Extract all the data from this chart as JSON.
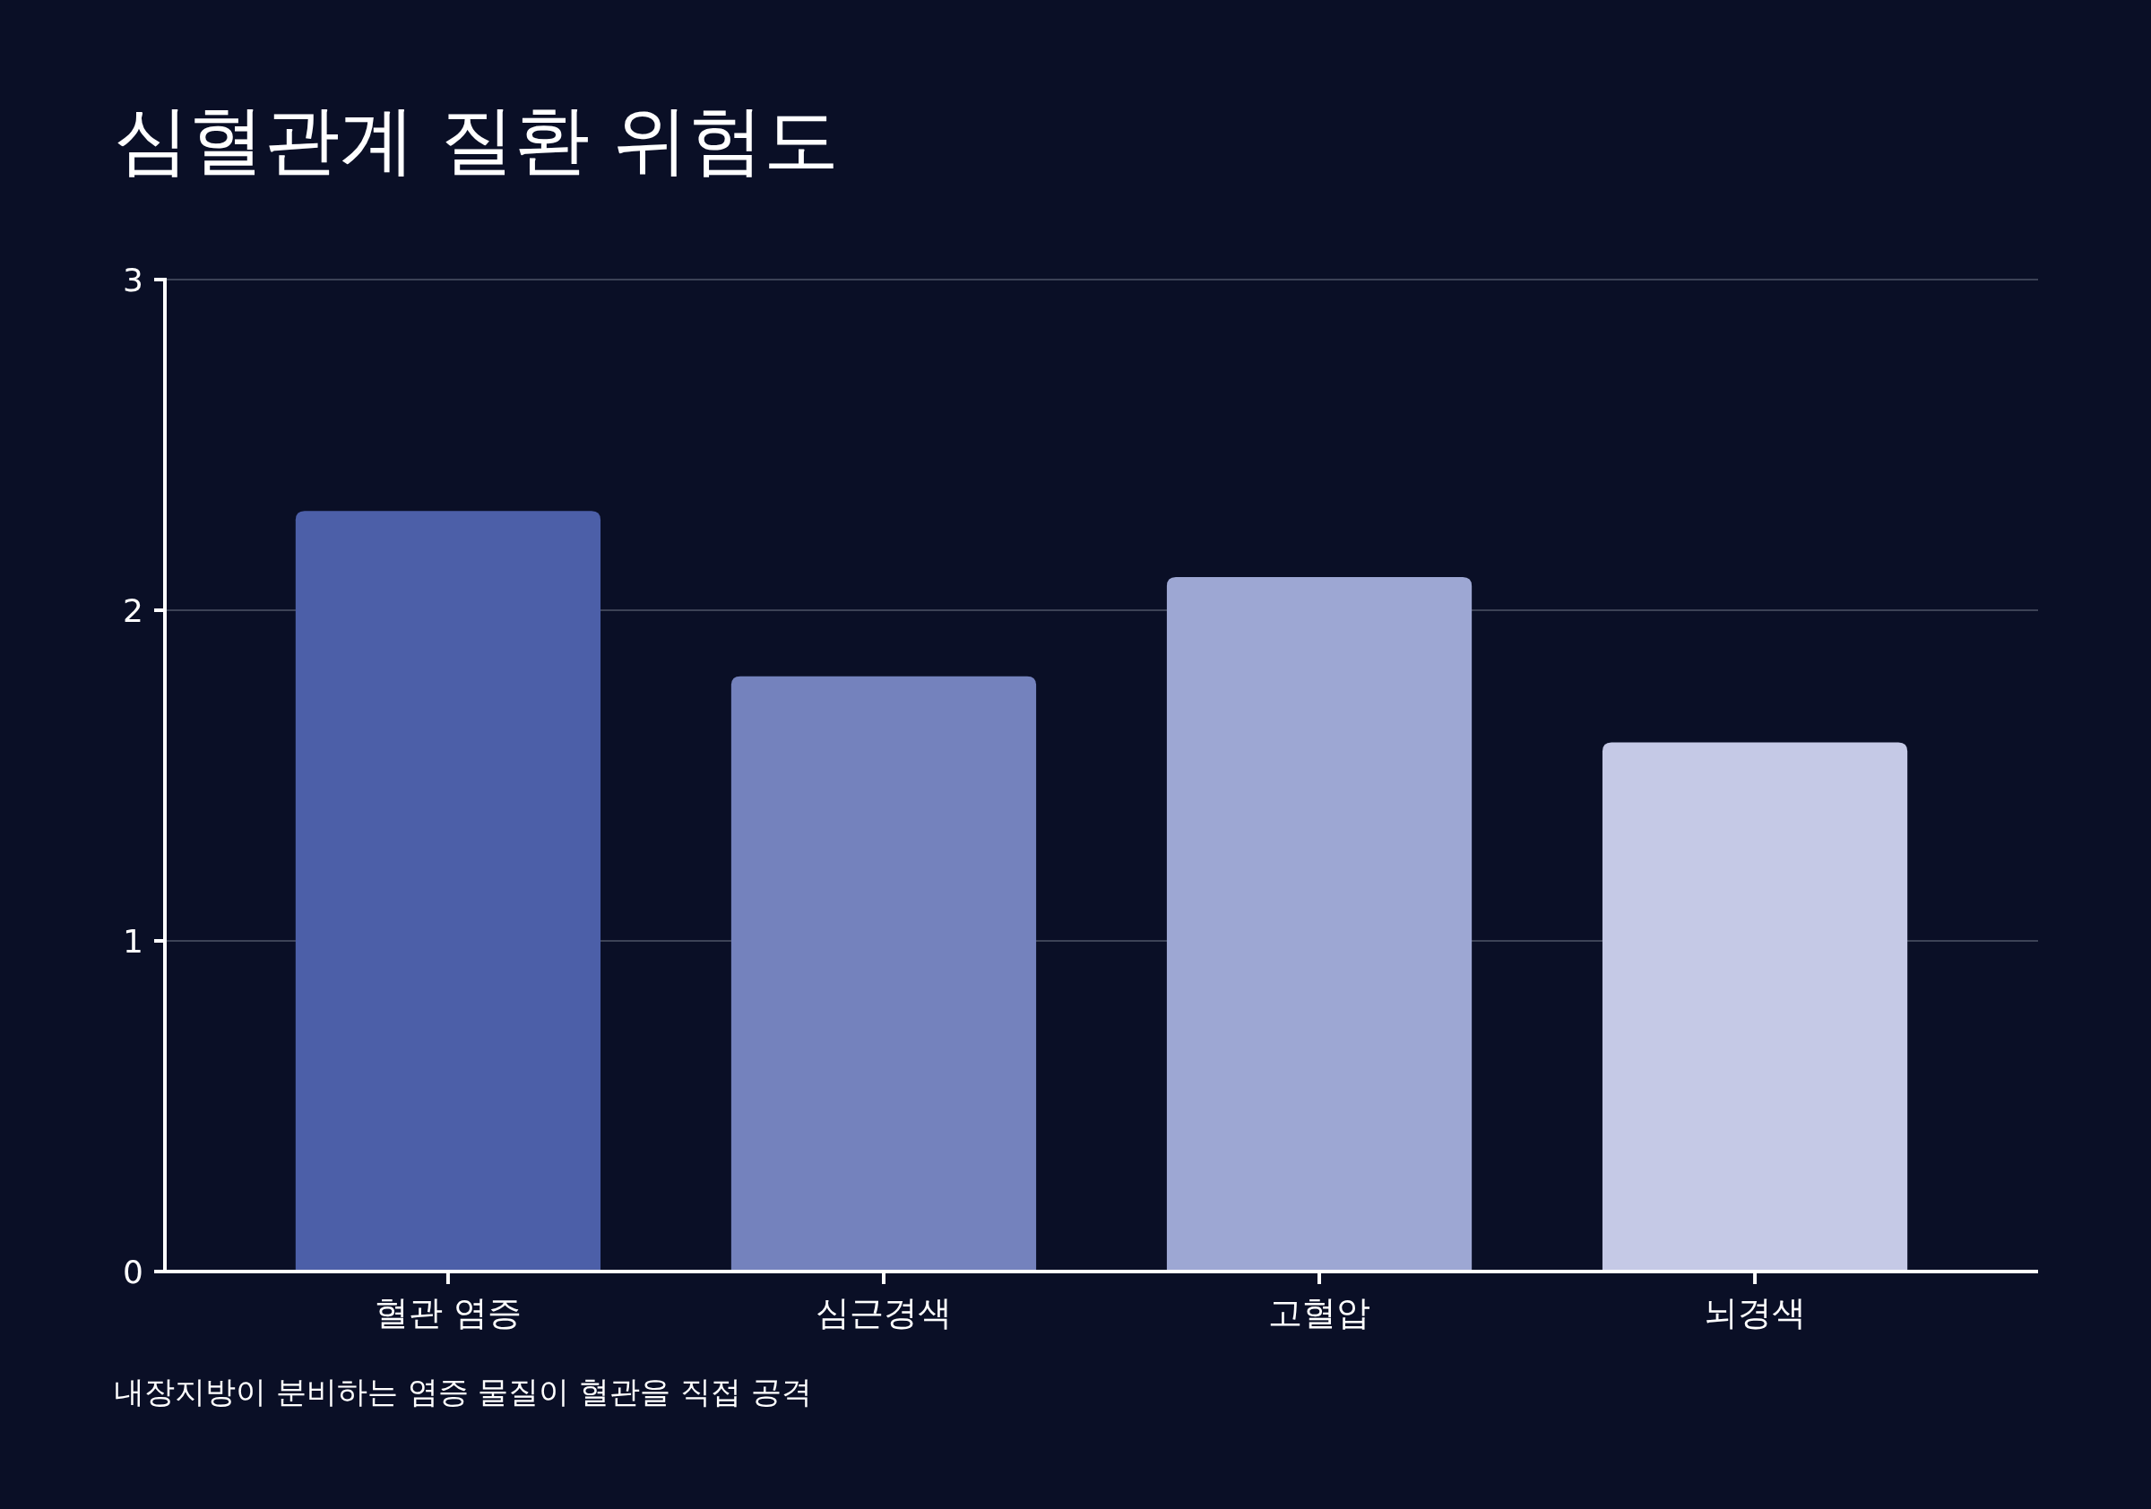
{
  "chart_data": {
    "type": "bar",
    "title": "심혈관계 질환 위험도",
    "categories": [
      "혈관 염증",
      "심근경색",
      "고혈압",
      "뇌경색"
    ],
    "values": [
      2.3,
      1.8,
      2.1,
      1.6
    ],
    "colors": [
      "#4c5fa8",
      "#7482bd",
      "#9da7d3",
      "#c5c9e6"
    ],
    "ylim": [
      0,
      3
    ],
    "yticks": [
      0,
      1,
      2,
      3
    ],
    "grid": "y",
    "annotations": [
      "내장지방이 분비하는 염증 물질이 혈관을 직접 공격"
    ]
  }
}
